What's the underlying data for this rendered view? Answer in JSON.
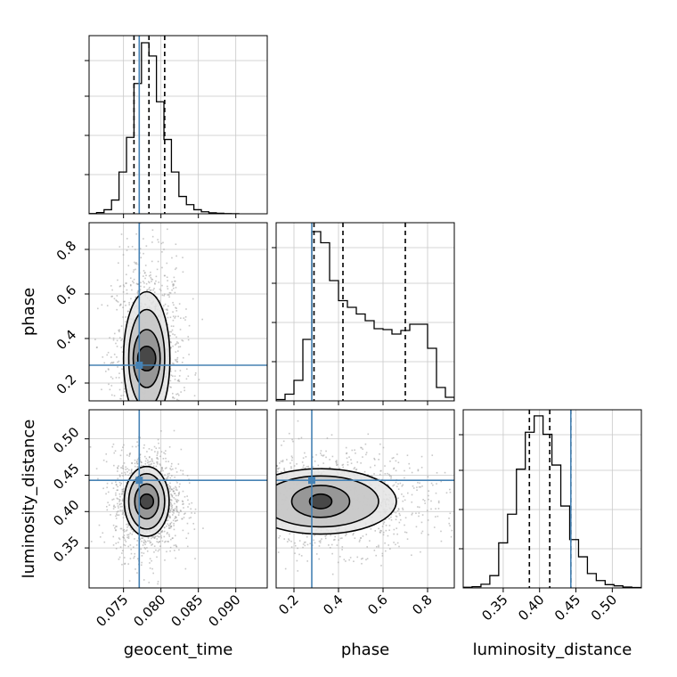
{
  "chart_data": {
    "type": "corner",
    "parameters": [
      "geocent_time",
      "phase",
      "luminosity_distance"
    ],
    "truths": {
      "geocent_time": 0.0771,
      "phase": 0.28,
      "luminosity_distance": 0.443
    },
    "quantiles": {
      "geocent_time": [
        0.0764,
        0.0784,
        0.0805
      ],
      "phase": [
        0.29,
        0.42,
        0.7
      ],
      "luminosity_distance": [
        0.386,
        0.414,
        0.443
      ]
    },
    "axes": {
      "geocent_time": {
        "range": [
          0.0704,
          0.0942
        ],
        "ticks": [
          0.075,
          0.08,
          0.085,
          0.09
        ],
        "tick_labels": [
          "0.075",
          "0.080",
          "0.085",
          "0.090"
        ]
      },
      "phase": {
        "range": [
          0.12,
          0.92
        ],
        "ticks": [
          0.2,
          0.4,
          0.6,
          0.8
        ],
        "tick_labels": [
          "0.2",
          "0.4",
          "0.6",
          "0.8"
        ]
      },
      "luminosity_distance": {
        "range": [
          0.295,
          0.54
        ],
        "ticks": [
          0.35,
          0.4,
          0.45,
          0.5
        ],
        "tick_labels": [
          "0.35",
          "0.40",
          "0.45",
          "0.50"
        ]
      }
    },
    "histograms": {
      "geocent_time": {
        "edges": [
          0.0704,
          0.0714,
          0.0724,
          0.0734,
          0.0744,
          0.0754,
          0.0764,
          0.0774,
          0.0784,
          0.0794,
          0.0804,
          0.0814,
          0.0824,
          0.0834,
          0.0844,
          0.0854,
          0.0864,
          0.0874,
          0.0884,
          0.0894,
          0.0904
        ],
        "counts": [
          0.2,
          1.2,
          4.0,
          13.5,
          41.0,
          75.0,
          128.0,
          168.0,
          155.0,
          110.0,
          73.0,
          41.0,
          17.0,
          9.0,
          4.0,
          2.0,
          1.0,
          0.5,
          0.2,
          0.1
        ],
        "ymax": 175
      },
      "phase": {
        "edges": [
          0.12,
          0.16,
          0.2,
          0.24,
          0.28,
          0.32,
          0.36,
          0.4,
          0.44,
          0.48,
          0.52,
          0.56,
          0.6,
          0.64,
          0.68,
          0.72,
          0.76,
          0.8,
          0.84,
          0.88,
          0.92
        ],
        "counts": [
          3,
          15,
          46,
          138,
          380,
          355,
          270,
          225,
          210,
          195,
          180,
          162,
          160,
          150,
          158,
          172,
          172,
          118,
          30,
          8
        ],
        "ymax": 400
      },
      "luminosity_distance": {
        "edges": [
          0.295,
          0.3072,
          0.3194,
          0.3316,
          0.3438,
          0.356,
          0.3682,
          0.3804,
          0.3926,
          0.4048,
          0.417,
          0.4292,
          0.4414,
          0.4536,
          0.4658,
          0.478,
          0.4902,
          0.5024,
          0.5146,
          0.5268,
          0.539
        ],
        "counts": [
          1.5,
          3,
          9,
          30,
          110,
          180,
          290,
          380,
          420,
          375,
          300,
          200,
          118,
          76,
          35,
          18,
          8,
          5,
          2,
          1
        ],
        "ymax": 435
      }
    },
    "contours": [
      {
        "x": "geocent_time",
        "y": "phase",
        "center": [
          0.0781,
          0.31
        ],
        "levels": [
          [
            0.0012,
            0.055
          ],
          [
            0.0018,
            0.13
          ],
          [
            0.0024,
            0.22
          ],
          [
            0.0031,
            0.3
          ]
        ]
      },
      {
        "x": "geocent_time",
        "y": "luminosity_distance",
        "center": [
          0.0781,
          0.414
        ],
        "levels": [
          [
            0.0009,
            0.01
          ],
          [
            0.0016,
            0.024
          ],
          [
            0.0024,
            0.038
          ],
          [
            0.003,
            0.048
          ]
        ]
      },
      {
        "x": "phase",
        "y": "luminosity_distance",
        "center": [
          0.32,
          0.414
        ],
        "levels": [
          [
            0.05,
            0.01
          ],
          [
            0.13,
            0.022
          ],
          [
            0.26,
            0.035
          ],
          [
            0.34,
            0.045
          ]
        ]
      }
    ],
    "xlabels": [
      "geocent_time",
      "phase",
      "luminosity_distance"
    ],
    "ylabels": [
      "phase",
      "luminosity_distance"
    ],
    "grid": true,
    "colors": {
      "truth": "#4682b4",
      "hist": "#000000",
      "points": "#808080",
      "grid": "#c8c8c8"
    }
  }
}
